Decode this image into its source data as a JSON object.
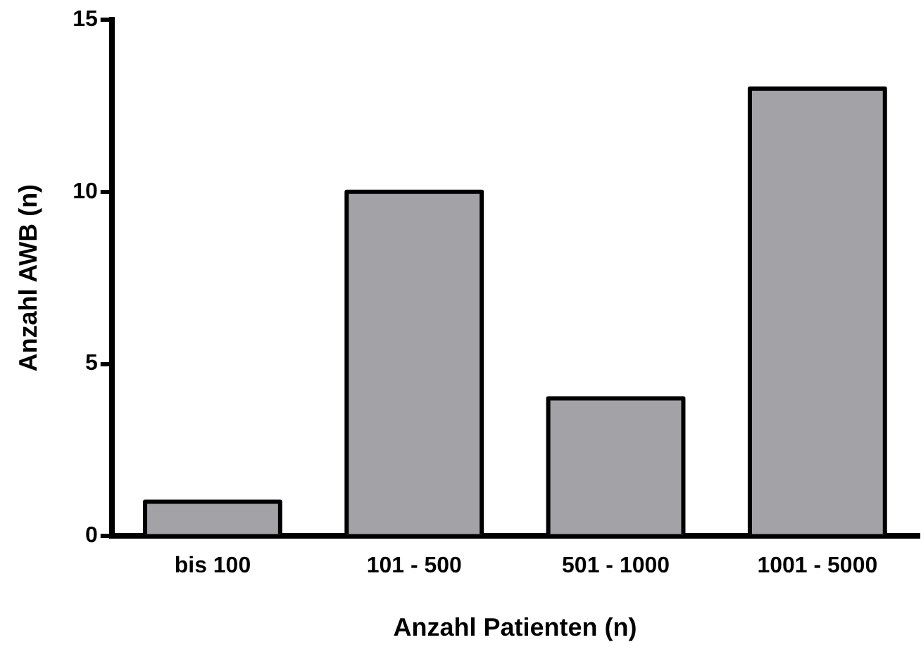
{
  "chart_data": {
    "type": "bar",
    "xlabel": "Anzahl Patienten (n)",
    "ylabel": "Anzahl AWB (n)",
    "categories": [
      "bis 100",
      "101 - 500",
      "501 - 1000",
      "1001 - 5000"
    ],
    "values": [
      1,
      10,
      4,
      13
    ],
    "color": "#a3a2a7",
    "ylim": [
      0,
      15
    ],
    "yticks": [
      0,
      5,
      10,
      15
    ],
    "grid": false,
    "legend": false
  }
}
